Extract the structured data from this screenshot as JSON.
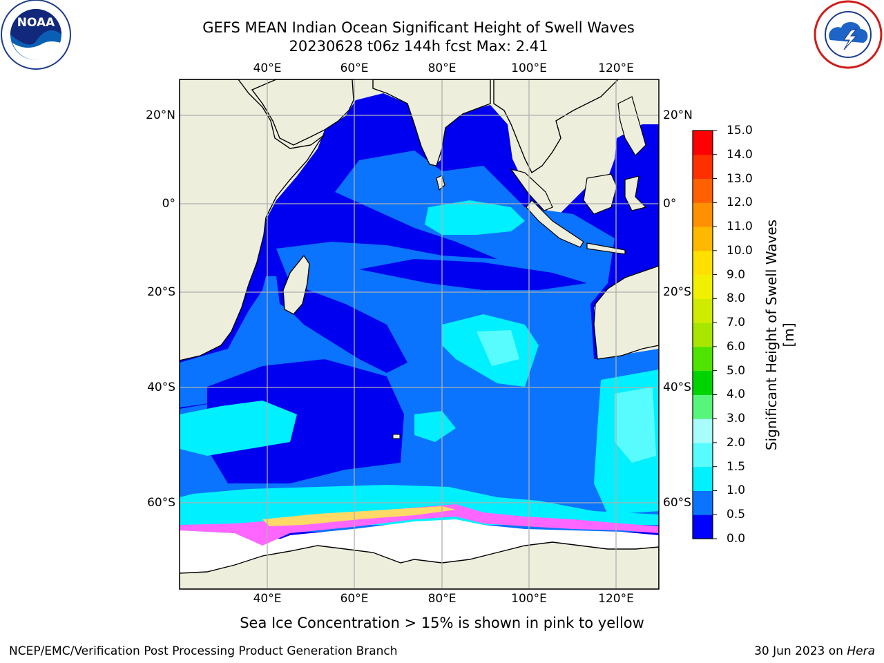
{
  "title_line1": "GEFS MEAN Indian Ocean Significant Height of Swell Waves",
  "title_line2": "20230628 t06z 144h fcst   Max: 2.41",
  "logos": {
    "left": {
      "name": "NOAA",
      "text": "NOAA",
      "ring_text": "NATIONAL OCEANIC AND ATMOSPHERIC ADMINISTRATION · U.S. DEPARTMENT OF COMMERCE"
    },
    "right": {
      "name": "National Weather Service",
      "ring_text": "NATIONAL WEATHER SERVICE"
    }
  },
  "map": {
    "lon_ticks_top": [
      "40°E",
      "60°E",
      "80°E",
      "100°E",
      "120°E"
    ],
    "lon_ticks_bottom": [
      "40°E",
      "60°E",
      "80°E",
      "100°E",
      "120°E"
    ],
    "lat_ticks_left": [
      "20°N",
      "0°",
      "20°S",
      "40°S",
      "60°S"
    ],
    "lat_ticks_right": [
      "20°N",
      "0°",
      "20°S",
      "40°S",
      "60°S"
    ],
    "extent_lon": [
      20,
      130
    ],
    "extent_lat": [
      -70,
      28
    ],
    "colors": {
      "land": "#eeeedd",
      "ocean_deep": "#0000f0",
      "ice": "#ffffff",
      "grid": "#b0b0b0"
    }
  },
  "colorbar": {
    "label": "Significant Height of Swell Waves [m]",
    "ticks": [
      "0.0",
      "0.5",
      "1.0",
      "1.5",
      "2.0",
      "3.0",
      "4.0",
      "5.0",
      "6.0",
      "7.0",
      "8.0",
      "9.0",
      "10.0",
      "11.0",
      "12.0",
      "13.0",
      "14.0",
      "15.0"
    ],
    "colors": [
      "#0000ff",
      "#0a74ff",
      "#00f0ff",
      "#58fcff",
      "#a8fcfc",
      "#57f57a",
      "#00d400",
      "#4fe400",
      "#a8e600",
      "#cfec00",
      "#f0f000",
      "#ffe000",
      "#ffb800",
      "#ff9000",
      "#ff6000",
      "#ff3000",
      "#ff0000"
    ]
  },
  "footnote": "Sea Ice Concentration > 15% is shown in pink to yellow",
  "credit_left": "NCEP/EMC/Verification Post Processing Product Generation Branch",
  "credit_right_prefix": "30 Jun 2023 on ",
  "credit_right_host": "Hera"
}
